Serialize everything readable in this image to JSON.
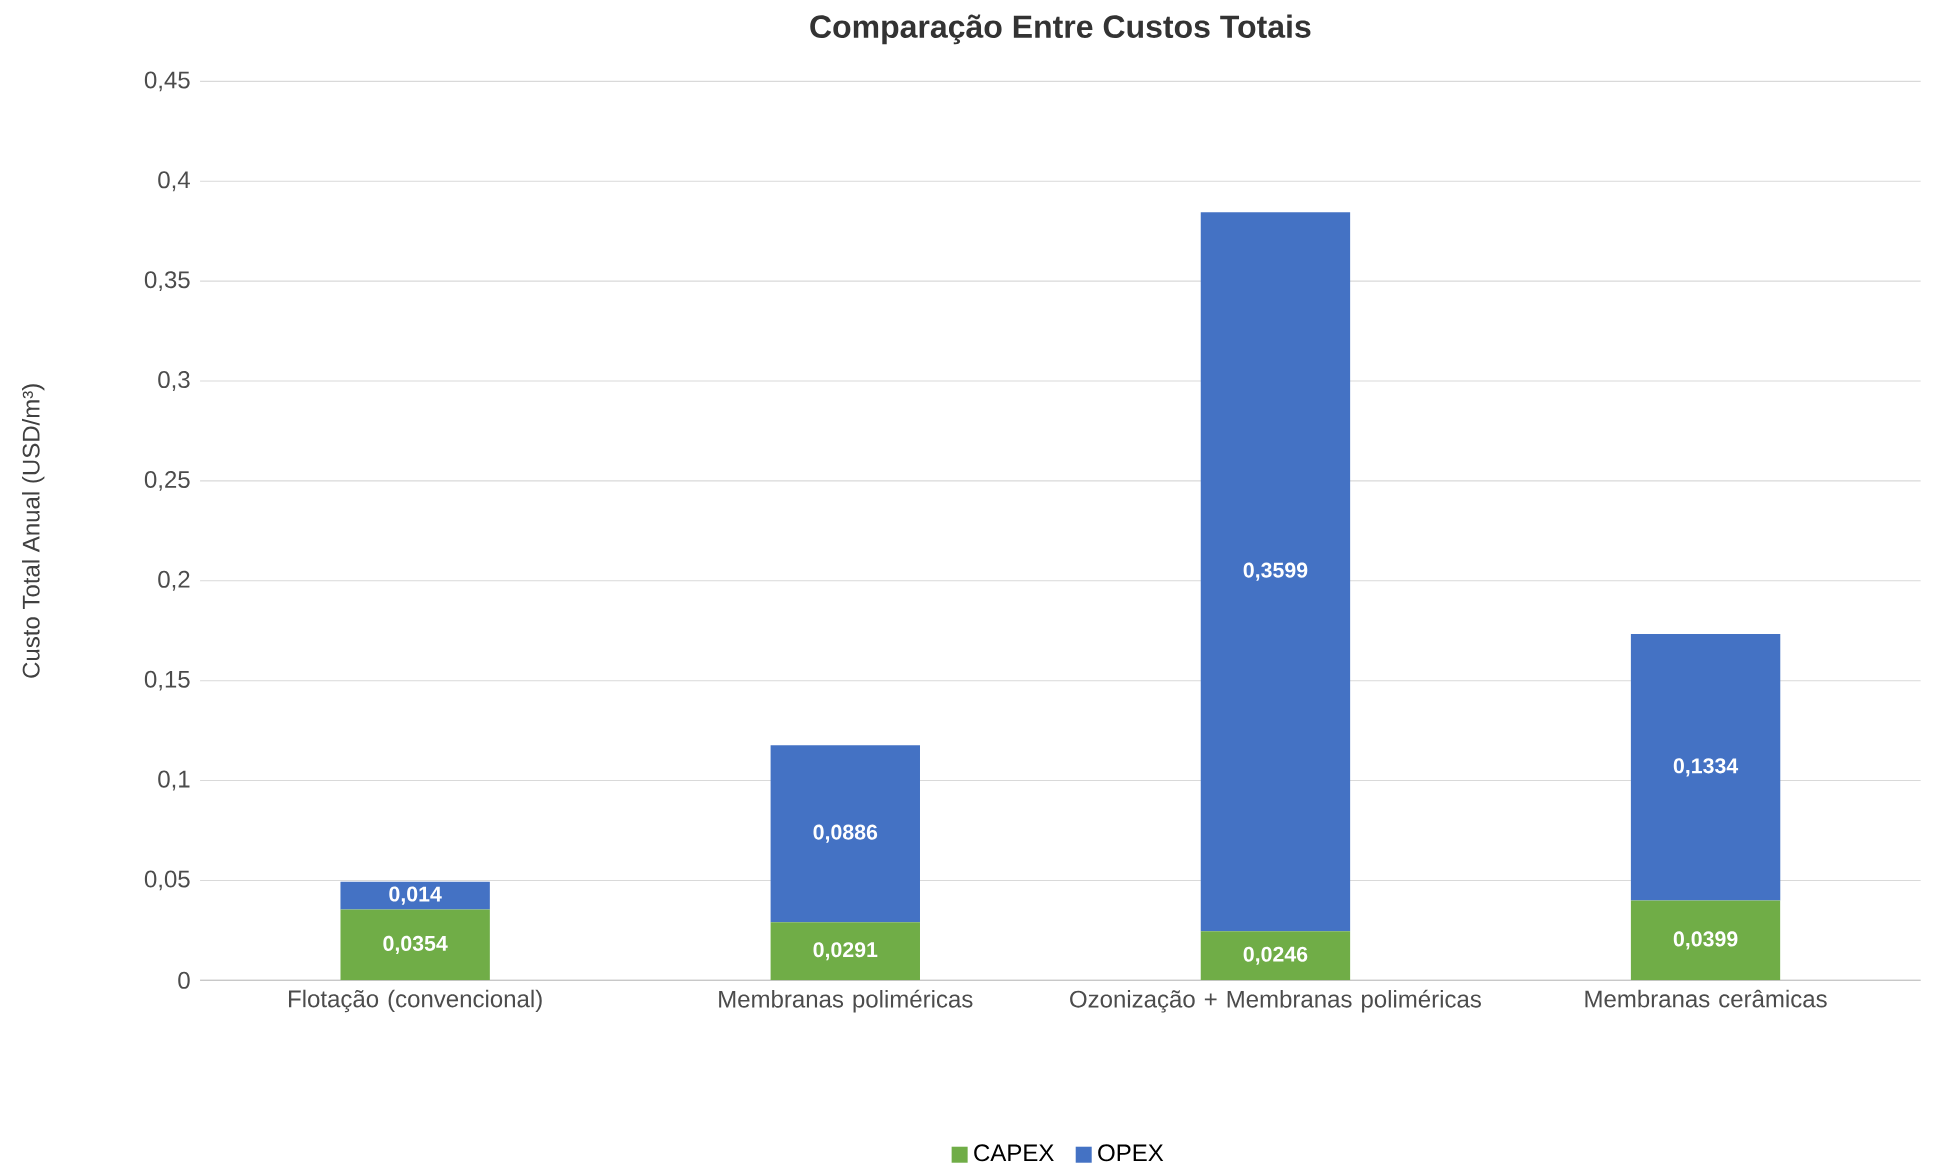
{
  "chart_data": {
    "type": "bar",
    "stacked": true,
    "title": "Comparação Entre Custos Totais",
    "ylabel": "Custo Total Anual (USD/m³)",
    "categories": [
      "Flotação (convencional)",
      "Membranas poliméricas",
      "Ozonização + Membranas poliméricas",
      "Membranas cerâmicas"
    ],
    "series": [
      {
        "name": "CAPEX",
        "color": "#70ad47",
        "values": [
          0.0354,
          0.0291,
          0.0246,
          0.0399
        ],
        "value_labels": [
          "0,0354",
          "0,0291",
          "0,0246",
          "0,0399"
        ]
      },
      {
        "name": "OPEX",
        "color": "#4472c4",
        "values": [
          0.014,
          0.0886,
          0.3599,
          0.1334
        ],
        "value_labels": [
          "0,014",
          "0,0886",
          "0,3599",
          "0,1334"
        ]
      }
    ],
    "ylim": [
      0,
      0.45
    ],
    "yticks": [
      0,
      {
        "value": 0.05,
        "label": "0,05"
      },
      {
        "value": 0.1,
        "label": "0,1"
      },
      {
        "value": 0.15,
        "label": "0,15"
      },
      {
        "value": 0.2,
        "label": "0,2"
      },
      {
        "value": 0.25,
        "label": "0,25"
      },
      {
        "value": 0.3,
        "label": "0,3"
      },
      {
        "value": 0.35,
        "label": "0,35"
      },
      {
        "value": 0.4,
        "label": "0,4"
      },
      {
        "value": 0.45,
        "label": "0,45"
      }
    ],
    "grid": "y",
    "legend": "bottom"
  }
}
